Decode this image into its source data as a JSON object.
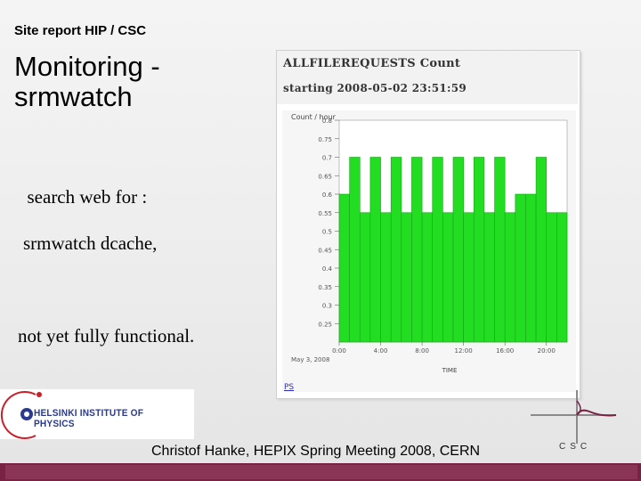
{
  "slide": {
    "header": "Site report HIP / CSC",
    "title_line1": "Monitoring -",
    "title_line2": "srmwatch",
    "body_line1": "search web for :",
    "body_line2": "srmwatch dcache,",
    "body_line3": "not yet fully functional.",
    "footer": "Christof Hanke,  HEPIX Spring Meeting 2008, CERN"
  },
  "logos": {
    "hip_text": "HELSINKI INSTITUTE OF PHYSICS",
    "csc_text": "CSC"
  },
  "panel": {
    "title": "ALLFILEREQUESTS Count",
    "subtitle": "starting 2008-05-02 23:51:59",
    "ps_link": "PS"
  },
  "colors": {
    "bar_fill": "#22dd22",
    "bar_stroke": "#11aa11",
    "footer_bar": "#7a2146"
  },
  "chart_data": {
    "type": "bar",
    "ylabel": "Count / hour",
    "xlabel": "TIME",
    "date_label": "May 3, 2008",
    "ylim": [
      0.2,
      0.8
    ],
    "y_ticks": [
      0.25,
      0.3,
      0.35,
      0.4,
      0.45,
      0.5,
      0.55,
      0.6,
      0.65,
      0.7,
      0.75,
      0.8
    ],
    "x_tick_labels": [
      "0:00",
      "4:00",
      "8:00",
      "12:00",
      "16:00",
      "20:00"
    ],
    "x_tick_hours": [
      0,
      4,
      8,
      12,
      16,
      20
    ],
    "series": [
      {
        "hours": [
          0,
          1,
          2,
          3,
          4,
          5,
          6,
          7,
          8,
          9,
          10,
          11,
          12,
          13,
          14,
          15,
          16,
          17,
          18,
          19,
          20,
          21
        ],
        "values": [
          0.6,
          0.7,
          0.55,
          0.7,
          0.55,
          0.7,
          0.55,
          0.7,
          0.55,
          0.7,
          0.55,
          0.7,
          0.55,
          0.7,
          0.55,
          0.7,
          0.55,
          0.6,
          0.6,
          0.7,
          0.55,
          0.55
        ]
      }
    ]
  }
}
